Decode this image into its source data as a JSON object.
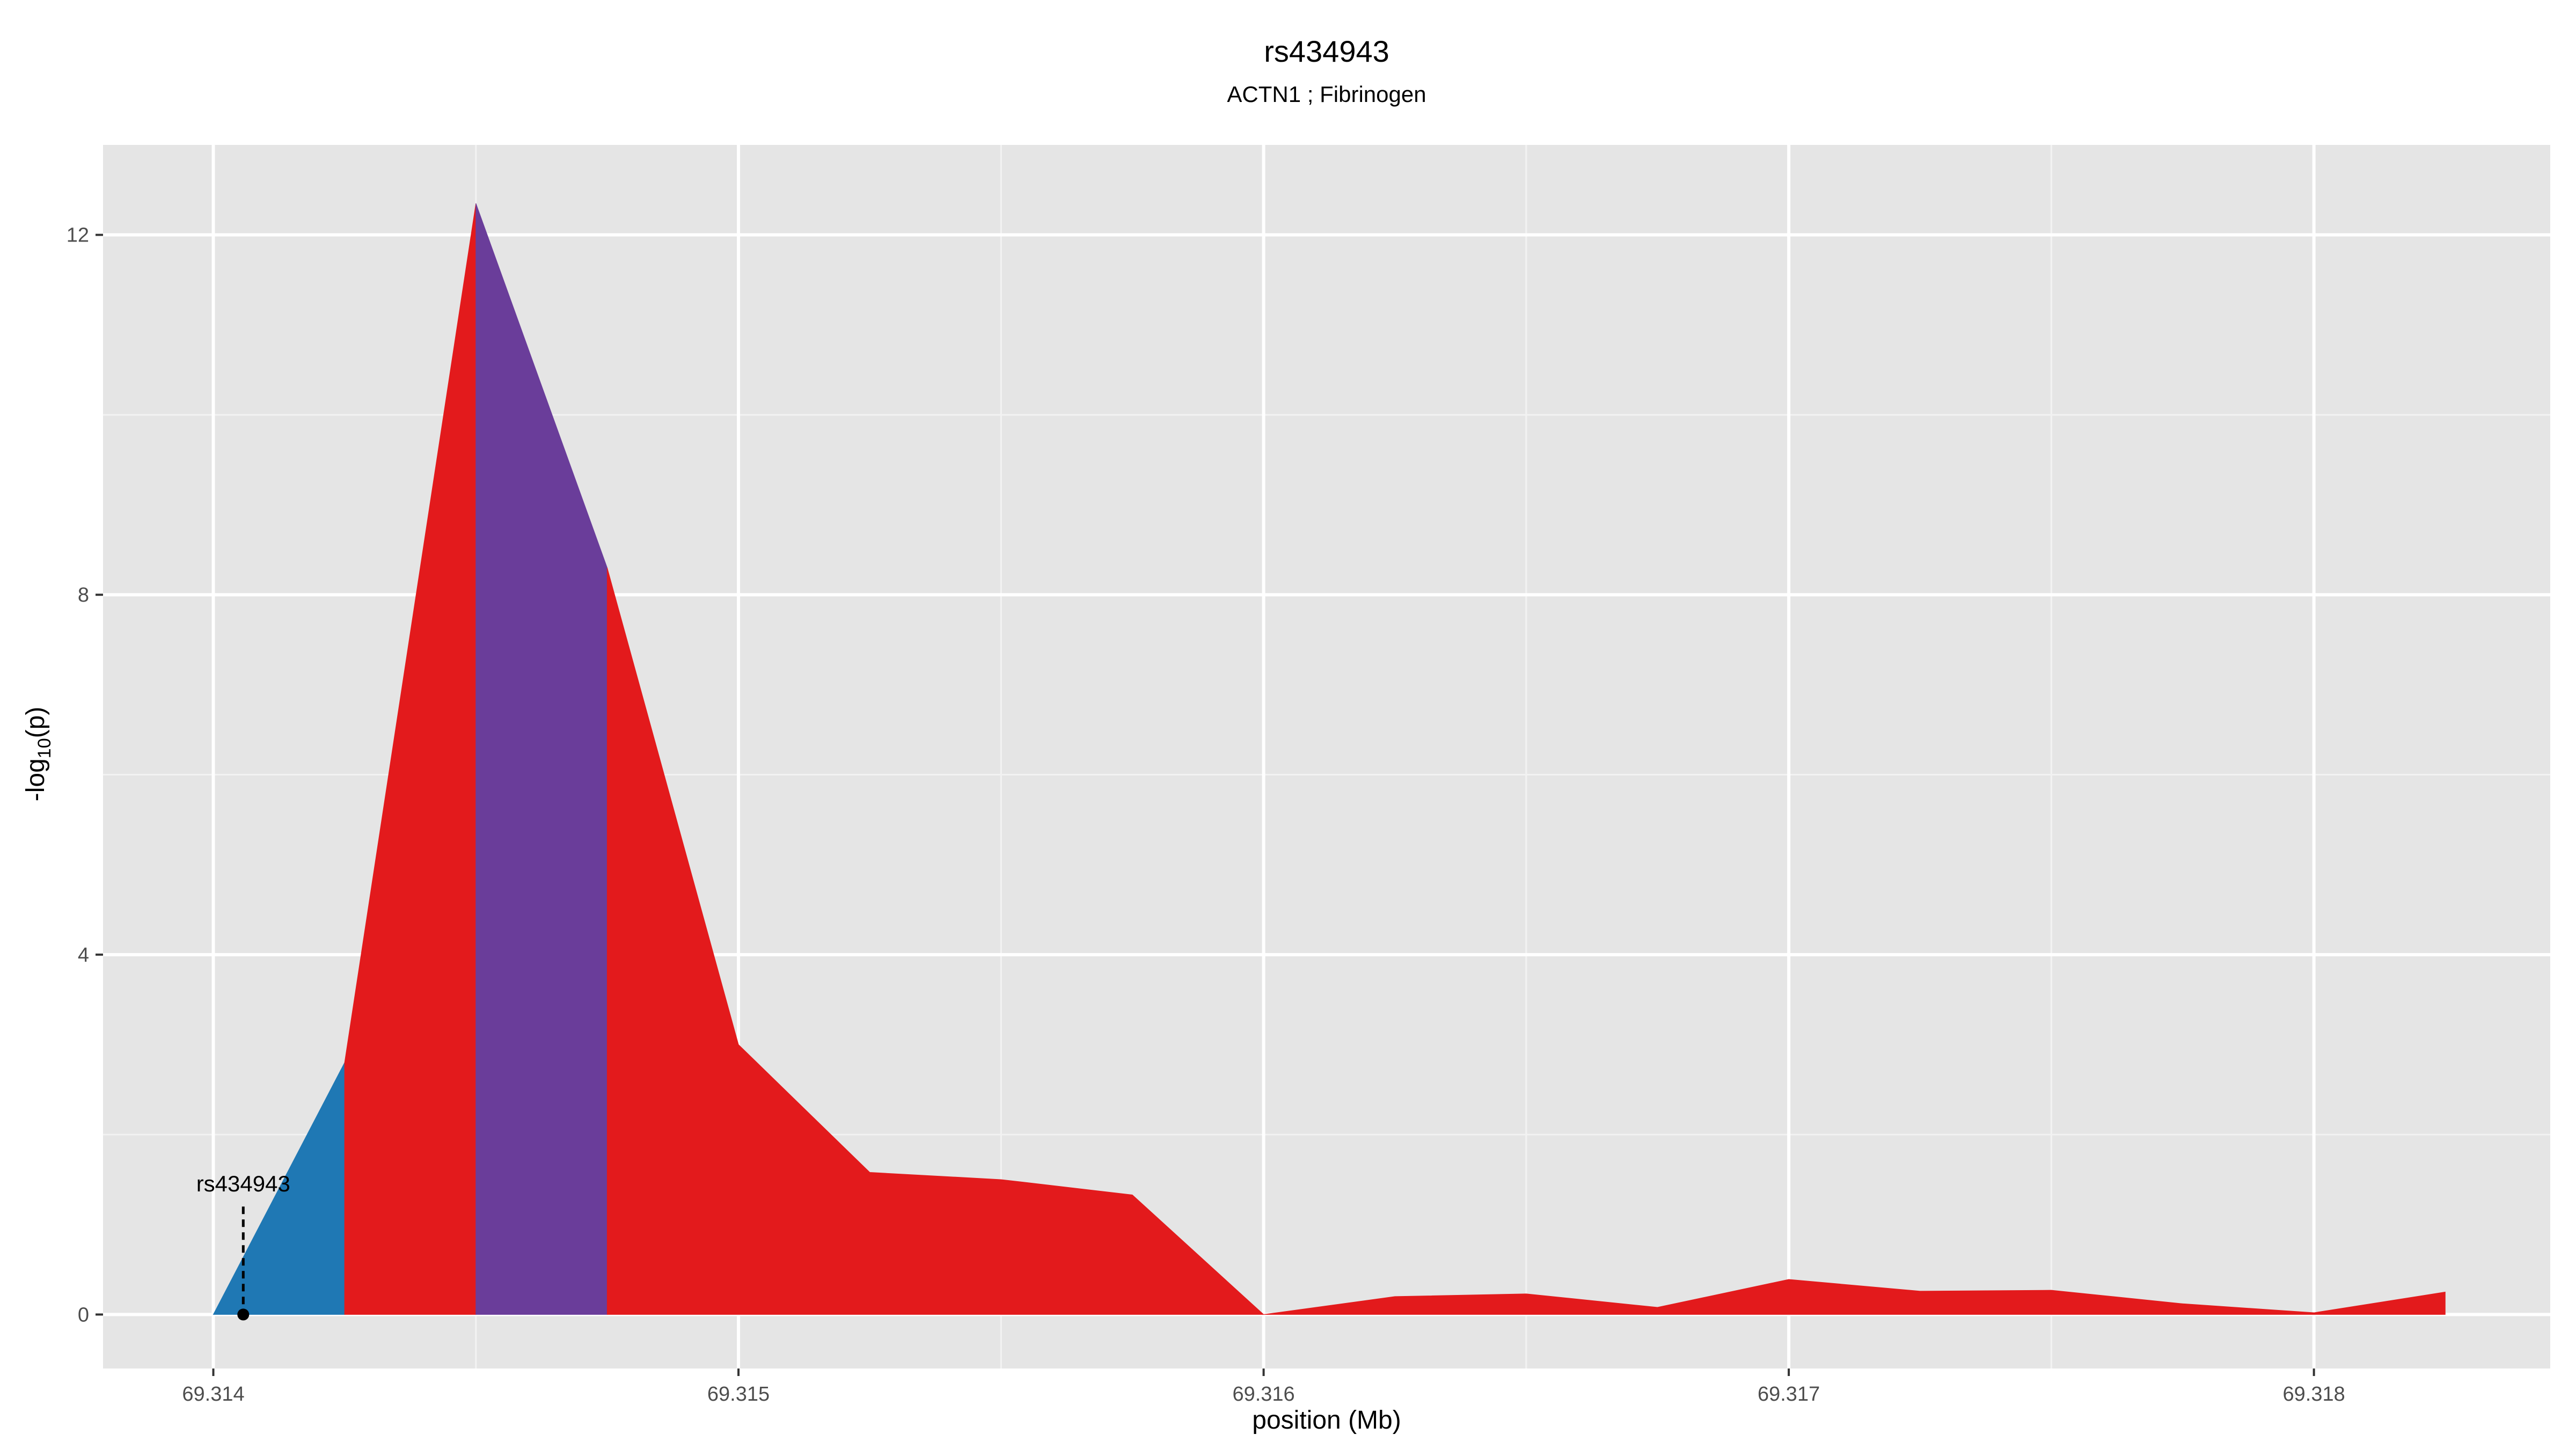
{
  "chart_data": {
    "type": "area",
    "title": "rs434943",
    "subtitle": "ACTN1 ; Fibrinogen",
    "xlabel": "position (Mb)",
    "ylabel_main": "-log",
    "ylabel_sub": "10",
    "ylabel_tail": "(p)",
    "xlim": [
      69.31379,
      69.31845
    ],
    "ylim": [
      -0.6,
      13.0
    ],
    "x_ticks": [
      69.314,
      69.315,
      69.316,
      69.317,
      69.318
    ],
    "x_tick_labels": [
      "69.314",
      "69.315",
      "69.316",
      "69.317",
      "69.318"
    ],
    "y_ticks": [
      0,
      4,
      8,
      12
    ],
    "y_tick_labels": [
      "0",
      "4",
      "8",
      "12"
    ],
    "grid": true,
    "points": [
      {
        "x": 69.314,
        "y": 0.0
      },
      {
        "x": 69.31425,
        "y": 2.8
      },
      {
        "x": 69.3145,
        "y": 12.35
      },
      {
        "x": 69.31475,
        "y": 8.3
      },
      {
        "x": 69.315,
        "y": 3.0
      },
      {
        "x": 69.31525,
        "y": 1.58
      },
      {
        "x": 69.3155,
        "y": 1.5
      },
      {
        "x": 69.31575,
        "y": 1.33
      },
      {
        "x": 69.316,
        "y": 0.0
      },
      {
        "x": 69.31625,
        "y": 0.2
      },
      {
        "x": 69.3165,
        "y": 0.23
      },
      {
        "x": 69.31675,
        "y": 0.08
      },
      {
        "x": 69.317,
        "y": 0.39
      },
      {
        "x": 69.31725,
        "y": 0.26
      },
      {
        "x": 69.3175,
        "y": 0.27
      },
      {
        "x": 69.31775,
        "y": 0.12
      },
      {
        "x": 69.318,
        "y": 0.02
      },
      {
        "x": 69.31825,
        "y": 0.25
      }
    ],
    "segments": [
      {
        "from": 69.314,
        "to": 69.31425,
        "color": "#1F78B4"
      },
      {
        "from": 69.31425,
        "to": 69.3145,
        "color": "#E31A1C"
      },
      {
        "from": 69.3145,
        "to": 69.31475,
        "color": "#6A3D9A"
      },
      {
        "from": 69.31475,
        "to": 69.31825,
        "color": "#E31A1C"
      }
    ],
    "marker": {
      "label": "rs434943",
      "x": 69.314057,
      "y": 0.0,
      "line_top": 1.2
    },
    "colors": {
      "panel": "#E5E5E5",
      "grid_major": "#FFFFFF",
      "grid_minor": "#F2F2F2"
    }
  }
}
